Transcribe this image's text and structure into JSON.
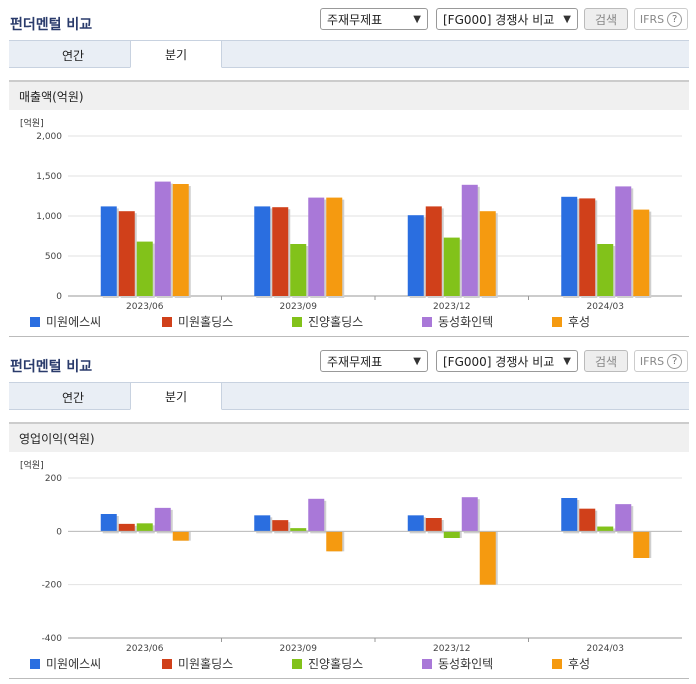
{
  "panels": [
    {
      "title": "펀더멘털 비교",
      "statement_select": "주재무제표",
      "compare_select": "[FG000] 경쟁사 비교",
      "search_label": "검색",
      "ifrs_label": "IFRS",
      "help_glyph": "?",
      "tabs": [
        "연간",
        "분기"
      ],
      "active_tab": "분기",
      "metric_label": "매출액(억원)"
    },
    {
      "title": "펀더멘털 비교",
      "statement_select": "주재무제표",
      "compare_select": "[FG000] 경쟁사 비교",
      "search_label": "검색",
      "ifrs_label": "IFRS",
      "help_glyph": "?",
      "tabs": [
        "연간",
        "분기"
      ],
      "active_tab": "분기",
      "metric_label": "영업이익(억원)"
    }
  ],
  "chart_data": [
    {
      "type": "bar",
      "unit_label": "[억원]",
      "categories": [
        "2023/06",
        "2023/09",
        "2023/12",
        "2024/03"
      ],
      "ylim": [
        0,
        2000
      ],
      "yticks": [
        0,
        500,
        1000,
        1500,
        2000
      ],
      "ytick_labels": [
        "0",
        "500",
        "1,000",
        "1,500",
        "2,000"
      ],
      "series": [
        {
          "name": "미원에스씨",
          "color": "#2a6ee0",
          "values": [
            1120,
            1120,
            1010,
            1240
          ]
        },
        {
          "name": "미원홀딩스",
          "color": "#d0401a",
          "values": [
            1060,
            1110,
            1120,
            1220
          ]
        },
        {
          "name": "진양홀딩스",
          "color": "#82c21a",
          "values": [
            680,
            650,
            730,
            650
          ]
        },
        {
          "name": "동성화인텍",
          "color": "#a978d8",
          "values": [
            1430,
            1230,
            1390,
            1370
          ]
        },
        {
          "name": "후성",
          "color": "#f59a10",
          "values": [
            1400,
            1230,
            1060,
            1080
          ]
        }
      ]
    },
    {
      "type": "bar",
      "unit_label": "[억원]",
      "categories": [
        "2023/06",
        "2023/09",
        "2023/12",
        "2024/03"
      ],
      "ylim": [
        -400,
        200
      ],
      "yticks": [
        -400,
        -200,
        0,
        200
      ],
      "ytick_labels": [
        "-400",
        "-200",
        "0",
        "200"
      ],
      "series": [
        {
          "name": "미원에스씨",
          "color": "#2a6ee0",
          "values": [
            65,
            60,
            60,
            125
          ]
        },
        {
          "name": "미원홀딩스",
          "color": "#d0401a",
          "values": [
            28,
            42,
            50,
            85
          ]
        },
        {
          "name": "진양홀딩스",
          "color": "#82c21a",
          "values": [
            30,
            12,
            -25,
            18
          ]
        },
        {
          "name": "동성화인텍",
          "color": "#a978d8",
          "values": [
            88,
            122,
            128,
            102
          ]
        },
        {
          "name": "후성",
          "color": "#f59a10",
          "values": [
            -35,
            -75,
            -200,
            -100
          ]
        }
      ]
    }
  ]
}
